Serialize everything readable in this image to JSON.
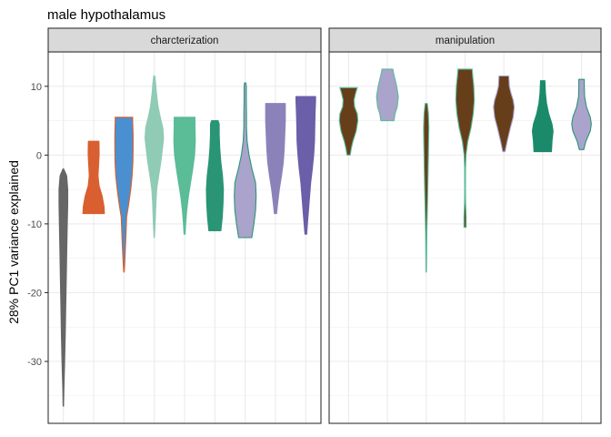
{
  "chart_data": {
    "type": "violin",
    "title": "male hypothalamus",
    "ylabel": "28% PC1 variance explained",
    "xlabel": "",
    "ylim": [
      -39,
      15
    ],
    "y_ticks": [
      10,
      0,
      -10,
      -20,
      -30
    ],
    "grid": true,
    "legend": "none",
    "panels": [
      {
        "label": "charcterization",
        "violins": [
          {
            "min": -36.5,
            "max": -2,
            "fill": "#666666",
            "stroke": "#666666",
            "profile": [
              [
                -36.5,
                0.02
              ],
              [
                -34,
                0.05
              ],
              [
                -30,
                0.12
              ],
              [
                -26,
                0.18
              ],
              [
                -22,
                0.22
              ],
              [
                -18,
                0.27
              ],
              [
                -14,
                0.31
              ],
              [
                -10,
                0.36
              ],
              [
                -7,
                0.4
              ],
              [
                -5,
                0.4
              ],
              [
                -3,
                0.3
              ],
              [
                -2,
                0.02
              ]
            ]
          },
          {
            "min": -8.5,
            "max": 2,
            "fill": "#d95f30",
            "stroke": "#d95f30",
            "profile": [
              [
                -8.5,
                0.98
              ],
              [
                -7.5,
                0.95
              ],
              [
                -6,
                0.78
              ],
              [
                -4.5,
                0.5
              ],
              [
                -3,
                0.4
              ],
              [
                -1.5,
                0.45
              ],
              [
                0,
                0.5
              ],
              [
                1,
                0.5
              ],
              [
                2,
                0.48
              ]
            ]
          },
          {
            "min": -17,
            "max": 5.5,
            "fill": "#4a90d0",
            "stroke": "#d95f30",
            "profile": [
              [
                -17,
                0.02
              ],
              [
                -16,
                0.06
              ],
              [
                -13,
                0.15
              ],
              [
                -11,
                0.2
              ],
              [
                -9,
                0.25
              ],
              [
                -7,
                0.45
              ],
              [
                -5,
                0.62
              ],
              [
                -3,
                0.75
              ],
              [
                -1,
                0.82
              ],
              [
                1,
                0.84
              ],
              [
                3,
                0.84
              ],
              [
                5,
                0.8
              ],
              [
                5.5,
                0.8
              ]
            ]
          },
          {
            "min": -12,
            "max": 11.5,
            "fill": "#8fcbb5",
            "stroke": "#8fcbb5",
            "profile": [
              [
                -12,
                0.02
              ],
              [
                -10,
                0.08
              ],
              [
                -7,
                0.15
              ],
              [
                -5,
                0.22
              ],
              [
                -3,
                0.4
              ],
              [
                -1,
                0.6
              ],
              [
                1,
                0.75
              ],
              [
                2.5,
                0.85
              ],
              [
                4,
                0.78
              ],
              [
                5.5,
                0.55
              ],
              [
                7,
                0.35
              ],
              [
                9,
                0.2
              ],
              [
                10.5,
                0.12
              ],
              [
                11.5,
                0.05
              ]
            ]
          },
          {
            "min": -11.5,
            "max": 5.5,
            "fill": "#5bbc98",
            "stroke": "#5bbc98",
            "profile": [
              [
                -11.5,
                0.05
              ],
              [
                -10,
                0.1
              ],
              [
                -8,
                0.2
              ],
              [
                -6,
                0.35
              ],
              [
                -4,
                0.55
              ],
              [
                -2,
                0.75
              ],
              [
                0,
                0.92
              ],
              [
                2,
                0.98
              ],
              [
                4,
                0.96
              ],
              [
                5.5,
                0.95
              ]
            ]
          },
          {
            "min": -11,
            "max": 5,
            "fill": "#2a9574",
            "stroke": "#2a9574",
            "profile": [
              [
                -11,
                0.55
              ],
              [
                -9,
                0.68
              ],
              [
                -7,
                0.75
              ],
              [
                -5,
                0.78
              ],
              [
                -3,
                0.7
              ],
              [
                -1,
                0.55
              ],
              [
                1,
                0.45
              ],
              [
                3,
                0.4
              ],
              [
                4.5,
                0.4
              ],
              [
                5,
                0.3
              ]
            ]
          },
          {
            "min": -12,
            "max": 10.5,
            "fill": "#aaa3cc",
            "stroke": "#2a9574",
            "profile": [
              [
                -12,
                0.6
              ],
              [
                -10,
                0.8
              ],
              [
                -8,
                0.95
              ],
              [
                -6,
                1.0
              ],
              [
                -4,
                0.95
              ],
              [
                -2,
                0.62
              ],
              [
                0,
                0.35
              ],
              [
                2,
                0.18
              ],
              [
                4,
                0.12
              ],
              [
                6,
                0.12
              ],
              [
                8,
                0.1
              ],
              [
                10,
                0.1
              ],
              [
                10.5,
                0.06
              ]
            ]
          },
          {
            "min": -8.5,
            "max": 7.5,
            "fill": "#8c82ba",
            "stroke": "#8c82ba",
            "profile": [
              [
                -8.5,
                0.1
              ],
              [
                -7,
                0.2
              ],
              [
                -5,
                0.35
              ],
              [
                -3,
                0.55
              ],
              [
                -1,
                0.72
              ],
              [
                1,
                0.8
              ],
              [
                3,
                0.85
              ],
              [
                5,
                0.9
              ],
              [
                7,
                0.9
              ],
              [
                7.5,
                0.9
              ]
            ]
          },
          {
            "min": -11.5,
            "max": 8.5,
            "fill": "#6a5fa8",
            "stroke": "#6a5fa8",
            "profile": [
              [
                -11.5,
                0.08
              ],
              [
                -10,
                0.15
              ],
              [
                -8,
                0.25
              ],
              [
                -6,
                0.35
              ],
              [
                -4,
                0.45
              ],
              [
                -2,
                0.6
              ],
              [
                0,
                0.72
              ],
              [
                2,
                0.8
              ],
              [
                4,
                0.82
              ],
              [
                6,
                0.85
              ],
              [
                8,
                0.9
              ],
              [
                8.5,
                0.9
              ]
            ]
          }
        ]
      },
      {
        "label": "manipulation",
        "violins": [
          {
            "min": 0,
            "max": 9.8,
            "fill": "#673e1a",
            "stroke": "#5bbc98",
            "profile": [
              [
                0,
                0.15
              ],
              [
                1,
                0.25
              ],
              [
                2,
                0.4
              ],
              [
                3.5,
                0.7
              ],
              [
                5,
                0.85
              ],
              [
                6,
                0.8
              ],
              [
                7,
                0.55
              ],
              [
                8,
                0.5
              ],
              [
                9,
                0.65
              ],
              [
                9.8,
                0.8
              ]
            ]
          },
          {
            "min": 5,
            "max": 12.5,
            "fill": "#aaa3cc",
            "stroke": "#5bbc98",
            "profile": [
              [
                5,
                0.6
              ],
              [
                6,
                0.7
              ],
              [
                7,
                0.9
              ],
              [
                8.5,
                1.0
              ],
              [
                10,
                0.85
              ],
              [
                11,
                0.7
              ],
              [
                12,
                0.55
              ],
              [
                12.5,
                0.5
              ]
            ]
          },
          {
            "min": -17,
            "max": 7.5,
            "fill": "#673e1a",
            "stroke": "#5bbc98",
            "profile": [
              [
                -17,
                0.02
              ],
              [
                -14,
                0.04
              ],
              [
                -11,
                0.06
              ],
              [
                -8,
                0.1
              ],
              [
                -5,
                0.14
              ],
              [
                -2,
                0.18
              ],
              [
                0,
                0.2
              ],
              [
                2,
                0.22
              ],
              [
                4,
                0.24
              ],
              [
                6,
                0.2
              ],
              [
                7.5,
                0.1
              ]
            ]
          },
          {
            "min": -10.5,
            "max": 12.5,
            "fill": "#673e1a",
            "stroke": "#5bbc98",
            "profile": [
              [
                -10.5,
                0.1
              ],
              [
                -9,
                0.1
              ],
              [
                -7,
                0.05
              ],
              [
                -5,
                0.03
              ],
              [
                -2,
                0.04
              ],
              [
                0,
                0.08
              ],
              [
                2,
                0.25
              ],
              [
                4,
                0.55
              ],
              [
                6,
                0.75
              ],
              [
                8,
                0.85
              ],
              [
                10,
                0.8
              ],
              [
                11.5,
                0.7
              ],
              [
                12.5,
                0.65
              ]
            ]
          },
          {
            "min": 0.5,
            "max": 11.5,
            "fill": "#673e1a",
            "stroke": "#aaa3cc",
            "profile": [
              [
                0.5,
                0.1
              ],
              [
                2,
                0.3
              ],
              [
                4,
                0.6
              ],
              [
                5.5,
                0.85
              ],
              [
                7,
                0.95
              ],
              [
                8,
                0.85
              ],
              [
                9,
                0.65
              ],
              [
                10,
                0.5
              ],
              [
                11.5,
                0.45
              ]
            ]
          },
          {
            "min": 0.5,
            "max": 10.8,
            "fill": "#1b8a6b",
            "stroke": "#1b8a6b",
            "profile": [
              [
                0.5,
                0.8
              ],
              [
                2,
                0.85
              ],
              [
                3.5,
                0.95
              ],
              [
                4.5,
                0.85
              ],
              [
                6,
                0.55
              ],
              [
                7.5,
                0.35
              ],
              [
                9,
                0.25
              ],
              [
                10.8,
                0.2
              ]
            ]
          },
          {
            "min": 0.8,
            "max": 11,
            "fill": "#aaa3cc",
            "stroke": "#2a9574",
            "profile": [
              [
                0.8,
                0.2
              ],
              [
                2,
                0.4
              ],
              [
                3.5,
                0.8
              ],
              [
                4.5,
                0.9
              ],
              [
                5.5,
                0.8
              ],
              [
                7,
                0.45
              ],
              [
                8.5,
                0.28
              ],
              [
                10,
                0.25
              ],
              [
                11,
                0.25
              ]
            ]
          }
        ]
      }
    ]
  }
}
